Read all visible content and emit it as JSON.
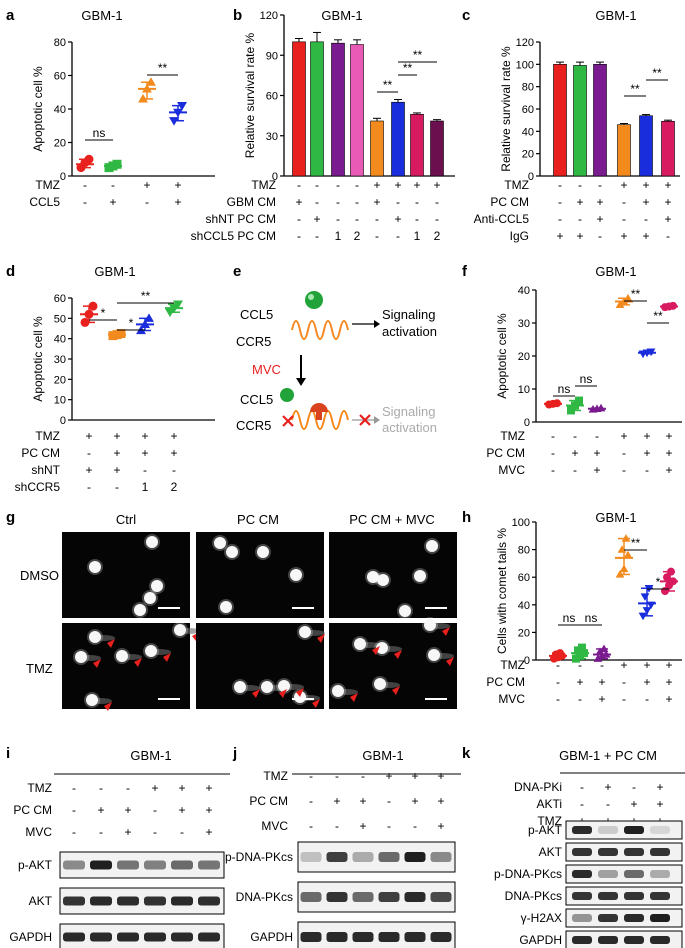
{
  "panels": {
    "a": {
      "letter": "a",
      "title": "GBM-1",
      "chart_data": {
        "type": "scatter",
        "ylabel": "Apoptotic cell %",
        "ylim": [
          0,
          80
        ],
        "yticks": [
          0,
          20,
          40,
          60,
          80
        ],
        "groups": [
          {
            "color": "#e8201e",
            "marker": "circle",
            "mean": 7,
            "points": [
              5,
              8,
              10
            ]
          },
          {
            "color": "#2fb844",
            "marker": "square",
            "mean": 6,
            "points": [
              5,
              6,
              7
            ]
          },
          {
            "color": "#f28a1e",
            "marker": "triangle",
            "mean": 52,
            "points": [
              46,
              52,
              56
            ]
          },
          {
            "color": "#1a2ddc",
            "marker": "triangle-down",
            "mean": 38,
            "points": [
              33,
              38,
              42
            ]
          }
        ],
        "conditions": [
          {
            "label": "TMZ",
            "signs": [
              "-",
              "-",
              "+",
              "+"
            ]
          },
          {
            "label": "CCL5",
            "signs": [
              "-",
              "+",
              "-",
              "+"
            ]
          }
        ],
        "annotations": [
          "ns",
          "**"
        ]
      }
    },
    "b": {
      "letter": "b",
      "title": "GBM-1",
      "chart_data": {
        "type": "bar",
        "ylabel": "Relative survival rate %",
        "ylim": [
          0,
          120
        ],
        "yticks": [
          0,
          30,
          60,
          90,
          120
        ],
        "bars": [
          {
            "value": 100,
            "err": 2.5,
            "color": "#e8201e"
          },
          {
            "value": 100,
            "err": 7,
            "color": "#2fb844"
          },
          {
            "value": 99,
            "err": 2.5,
            "color": "#7a1b8f"
          },
          {
            "value": 98,
            "err": 3.5,
            "color": "#e85ab5"
          },
          {
            "value": 41,
            "err": 2,
            "color": "#f28a1e"
          },
          {
            "value": 55,
            "err": 2,
            "color": "#1a2ddc"
          },
          {
            "value": 46,
            "err": 1,
            "color": "#d81b60"
          },
          {
            "value": 41,
            "err": 1,
            "color": "#6b0f4f"
          }
        ],
        "conditions": [
          {
            "label": "TMZ",
            "signs": [
              "-",
              "-",
              "-",
              "-",
              "+",
              "+",
              "+",
              "+"
            ]
          },
          {
            "label": "GBM CM",
            "signs": [
              "+",
              "-",
              "-",
              "-",
              "+",
              "-",
              "-",
              "-"
            ]
          },
          {
            "label": "shNT PC CM",
            "signs": [
              "-",
              "+",
              "-",
              "-",
              "-",
              "+",
              "-",
              "-"
            ]
          },
          {
            "label": "shCCL5 PC CM",
            "signs": [
              "-",
              "-",
              "1",
              "2",
              "-",
              "-",
              "1",
              "2"
            ]
          }
        ],
        "annotations": [
          "**",
          "**",
          "**"
        ]
      }
    },
    "c": {
      "letter": "c",
      "title": "GBM-1",
      "chart_data": {
        "type": "bar",
        "ylabel": "Relative survival rate %",
        "ylim": [
          0,
          120
        ],
        "yticks": [
          0,
          20,
          40,
          60,
          80,
          100,
          120
        ],
        "bars": [
          {
            "value": 100,
            "err": 2,
            "color": "#e8201e"
          },
          {
            "value": 99,
            "err": 3,
            "color": "#2fb844"
          },
          {
            "value": 100,
            "err": 2,
            "color": "#7a1b8f"
          },
          {
            "value": 46,
            "err": 1,
            "color": "#f28a1e"
          },
          {
            "value": 54,
            "err": 1,
            "color": "#1a2ddc"
          },
          {
            "value": 49,
            "err": 1,
            "color": "#d81b60"
          }
        ],
        "conditions": [
          {
            "label": "TMZ",
            "signs": [
              "-",
              "-",
              "-",
              "+",
              "+",
              "+"
            ]
          },
          {
            "label": "PC CM",
            "signs": [
              "-",
              "+",
              "+",
              "-",
              "+",
              "+"
            ]
          },
          {
            "label": "Anti-CCL5",
            "signs": [
              "-",
              "-",
              "+",
              "-",
              "-",
              "+"
            ]
          },
          {
            "label": "IgG",
            "signs": [
              "+",
              "+",
              "-",
              "+",
              "+",
              "-"
            ]
          }
        ],
        "annotations": [
          "**",
          "**"
        ]
      }
    },
    "d": {
      "letter": "d",
      "title": "GBM-1",
      "chart_data": {
        "type": "scatter",
        "ylabel": "Apoptotic cell %",
        "ylim": [
          0,
          60
        ],
        "yticks": [
          0,
          10,
          20,
          30,
          40,
          50,
          60
        ],
        "groups": [
          {
            "color": "#e8201e",
            "marker": "circle",
            "mean": 52,
            "points": [
              48,
              52,
              56
            ]
          },
          {
            "color": "#f28a1e",
            "marker": "square",
            "mean": 42,
            "points": [
              41.5,
              42,
              42.5
            ]
          },
          {
            "color": "#1a2ddc",
            "marker": "triangle",
            "mean": 47,
            "points": [
              44,
              47,
              50
            ]
          },
          {
            "color": "#2fb844",
            "marker": "triangle-down",
            "mean": 55,
            "points": [
              53,
              55,
              57
            ]
          }
        ],
        "conditions": [
          {
            "label": "TMZ",
            "signs": [
              "+",
              "+",
              "+",
              "+"
            ]
          },
          {
            "label": "PC CM",
            "signs": [
              "-",
              "+",
              "+",
              "+"
            ]
          },
          {
            "label": "shNT",
            "signs": [
              "+",
              "+",
              "-",
              "-"
            ]
          },
          {
            "label": "shCCR5",
            "signs": [
              "-",
              "-",
              "1",
              "2"
            ]
          }
        ],
        "annotations": [
          "*",
          "*",
          "**"
        ]
      }
    },
    "e": {
      "letter": "e",
      "ligand": "CCL5",
      "receptor": "CCR5",
      "drug": "MVC",
      "signal": "Signaling activation"
    },
    "f": {
      "letter": "f",
      "title": "GBM-1",
      "chart_data": {
        "type": "scatter",
        "ylabel": "Apoptotic cell %",
        "ylim": [
          0,
          40
        ],
        "yticks": [
          0,
          10,
          20,
          30,
          40
        ],
        "groups": [
          {
            "color": "#e8201e",
            "marker": "circle",
            "mean": 5.5,
            "points": [
              5.3,
              5.5,
              5.7
            ]
          },
          {
            "color": "#2fb844",
            "marker": "square",
            "mean": 5,
            "points": [
              3.5,
              5,
              6.5
            ]
          },
          {
            "color": "#7a1b8f",
            "marker": "triangle",
            "mean": 4,
            "points": [
              3.8,
              4,
              4.2
            ]
          },
          {
            "color": "#f28a1e",
            "marker": "triangle",
            "mean": 36.5,
            "points": [
              35.5,
              36.5,
              37.5
            ]
          },
          {
            "color": "#1a2ddc",
            "marker": "triangle-down",
            "mean": 21,
            "points": [
              20.7,
              21,
              21.3
            ]
          },
          {
            "color": "#d81b60",
            "marker": "circle",
            "mean": 35,
            "points": [
              34.8,
              35,
              35.2
            ]
          }
        ],
        "conditions": [
          {
            "label": "TMZ",
            "signs": [
              "-",
              "-",
              "-",
              "+",
              "+",
              "+"
            ]
          },
          {
            "label": "PC CM",
            "signs": [
              "-",
              "+",
              "+",
              "-",
              "+",
              "+"
            ]
          },
          {
            "label": "MVC",
            "signs": [
              "-",
              "-",
              "+",
              "-",
              "-",
              "+"
            ]
          }
        ],
        "annotations": [
          "ns",
          "ns",
          "**",
          "**"
        ]
      }
    },
    "g": {
      "letter": "g",
      "columns": [
        "Ctrl",
        "PC CM",
        "PC CM + MVC"
      ],
      "rows": [
        "DMSO",
        "TMZ"
      ]
    },
    "h": {
      "letter": "h",
      "title": "GBM-1",
      "chart_data": {
        "type": "scatter",
        "ylabel": "Cells with comet tails %",
        "ylim": [
          0,
          100
        ],
        "yticks": [
          0,
          20,
          40,
          60,
          80,
          100
        ],
        "groups": [
          {
            "color": "#e8201e",
            "marker": "circle",
            "mean": 3,
            "points": [
              1,
              2,
              3,
              4,
              5
            ]
          },
          {
            "color": "#2fb844",
            "marker": "square",
            "mean": 5,
            "points": [
              1,
              3,
              5,
              7,
              9
            ]
          },
          {
            "color": "#7a1b8f",
            "marker": "triangle",
            "mean": 4,
            "points": [
              1,
              3,
              4,
              6,
              8
            ]
          },
          {
            "color": "#f28a1e",
            "marker": "triangle",
            "mean": 74,
            "points": [
              62,
              66,
              76,
              80,
              88
            ]
          },
          {
            "color": "#1a2ddc",
            "marker": "triangle-down",
            "mean": 41,
            "points": [
              32,
              36,
              40,
              46,
              52
            ]
          },
          {
            "color": "#d81b60",
            "marker": "circle",
            "mean": 57,
            "points": [
              50,
              54,
              57,
              60,
              64
            ]
          }
        ],
        "conditions": [
          {
            "label": "TMZ",
            "signs": [
              "-",
              "-",
              "-",
              "+",
              "+",
              "+"
            ]
          },
          {
            "label": "PC CM",
            "signs": [
              "-",
              "+",
              "+",
              "-",
              "+",
              "+"
            ]
          },
          {
            "label": "MVC",
            "signs": [
              "-",
              "-",
              "+",
              "-",
              "-",
              "+"
            ]
          }
        ],
        "annotations": [
          "ns",
          "ns",
          "**",
          "*"
        ]
      }
    },
    "i": {
      "letter": "i",
      "title": "GBM-1",
      "conditions": [
        {
          "label": "TMZ",
          "signs": [
            "-",
            "-",
            "-",
            "+",
            "+",
            "+"
          ]
        },
        {
          "label": "PC CM",
          "signs": [
            "-",
            "+",
            "+",
            "-",
            "+",
            "+"
          ]
        },
        {
          "label": "MVC",
          "signs": [
            "-",
            "-",
            "+",
            "-",
            "-",
            "+"
          ]
        }
      ],
      "blots": [
        {
          "label": "p-AKT",
          "intensity": [
            0.45,
            0.95,
            0.55,
            0.5,
            0.6,
            0.55
          ]
        },
        {
          "label": "AKT",
          "intensity": [
            0.85,
            0.9,
            0.88,
            0.86,
            0.9,
            0.88
          ]
        },
        {
          "label": "GAPDH",
          "intensity": [
            0.9,
            0.9,
            0.9,
            0.9,
            0.9,
            0.9
          ]
        }
      ]
    },
    "j": {
      "letter": "j",
      "title": "GBM-1",
      "conditions": [
        {
          "label": "TMZ",
          "signs": [
            "-",
            "-",
            "-",
            "+",
            "+",
            "+"
          ]
        },
        {
          "label": "PC CM",
          "signs": [
            "-",
            "+",
            "+",
            "-",
            "+",
            "+"
          ]
        },
        {
          "label": "MVC",
          "signs": [
            "-",
            "-",
            "+",
            "-",
            "-",
            "+"
          ]
        }
      ],
      "blots": [
        {
          "label": "p-DNA-PKcs",
          "intensity": [
            0.2,
            0.8,
            0.3,
            0.6,
            0.95,
            0.45
          ]
        },
        {
          "label": "DNA-PKcs",
          "intensity": [
            0.6,
            0.85,
            0.6,
            0.8,
            0.9,
            0.75
          ]
        },
        {
          "label": "GAPDH",
          "intensity": [
            0.9,
            0.9,
            0.9,
            0.9,
            0.9,
            0.9
          ]
        }
      ]
    },
    "k": {
      "letter": "k",
      "title": "GBM-1 + PC CM",
      "conditions": [
        {
          "label": "DNA-PKi",
          "signs": [
            "-",
            "+",
            "-",
            "+"
          ]
        },
        {
          "label": "AKTi",
          "signs": [
            "-",
            "-",
            "+",
            "+"
          ]
        },
        {
          "label": "TMZ",
          "signs": [
            "+",
            "+",
            "+",
            "+"
          ]
        }
      ],
      "blots": [
        {
          "label": "p-AKT",
          "intensity": [
            0.9,
            0.15,
            0.95,
            0.1
          ]
        },
        {
          "label": "AKT",
          "intensity": [
            0.85,
            0.85,
            0.85,
            0.85
          ]
        },
        {
          "label": "p-DNA-PKcs",
          "intensity": [
            0.9,
            0.35,
            0.6,
            0.3
          ]
        },
        {
          "label": "DNA-PKcs",
          "intensity": [
            0.85,
            0.85,
            0.85,
            0.85
          ]
        },
        {
          "label": "γ-H2AX",
          "intensity": [
            0.4,
            0.85,
            0.9,
            0.95
          ]
        },
        {
          "label": "GAPDH",
          "intensity": [
            0.9,
            0.9,
            0.9,
            0.9
          ]
        }
      ]
    }
  }
}
